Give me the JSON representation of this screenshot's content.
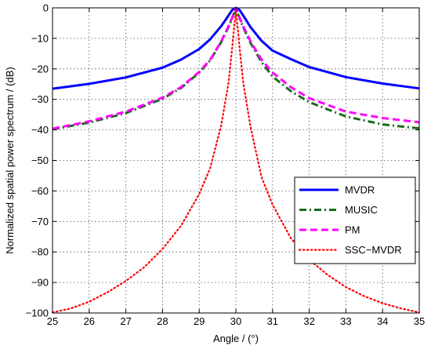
{
  "chart_data": {
    "type": "line",
    "title": "",
    "xlabel": "Angle / (°)",
    "ylabel": "Normalized spatial power spectrum / (dB)",
    "xlim": [
      25,
      35
    ],
    "ylim": [
      -100,
      0
    ],
    "xticks": [
      25,
      26,
      27,
      28,
      29,
      30,
      31,
      32,
      33,
      34,
      35
    ],
    "yticks": [
      0,
      -10,
      -20,
      -30,
      -40,
      -50,
      -60,
      -70,
      -80,
      -90,
      -100
    ],
    "grid": true,
    "legend_position": "lower-right",
    "series": [
      {
        "name": "MVDR",
        "color": "#0000ff",
        "style": "solid",
        "x": [
          25,
          26,
          27,
          28,
          28.5,
          29,
          29.3,
          29.6,
          29.8,
          29.9,
          30.0,
          30.1,
          30.2,
          30.4,
          30.7,
          31,
          31.5,
          32,
          33,
          34,
          35
        ],
        "y": [
          -26.5,
          -24.9,
          -22.8,
          -19.6,
          -17.0,
          -13.5,
          -10.3,
          -6.0,
          -2.5,
          -0.7,
          0,
          -0.7,
          -2.5,
          -6.3,
          -10.8,
          -14.0,
          -16.8,
          -19.4,
          -22.7,
          -24.8,
          -26.4
        ]
      },
      {
        "name": "MUSIC",
        "color": "#1a6b1a",
        "style": "dashdot",
        "x": [
          25,
          26,
          27,
          28,
          28.5,
          29,
          29.3,
          29.6,
          29.8,
          29.9,
          29.95,
          30.0,
          30.05,
          30.1,
          30.2,
          30.4,
          30.7,
          31,
          31.5,
          32,
          33,
          34,
          35
        ],
        "y": [
          -39.8,
          -37.6,
          -34.5,
          -29.8,
          -26.3,
          -21.2,
          -17.2,
          -11.2,
          -6.3,
          -3.4,
          -1.8,
          -0.5,
          -1.8,
          -3.4,
          -6.4,
          -11.5,
          -17.8,
          -22.5,
          -27.3,
          -30.9,
          -35.6,
          -38.2,
          -39.5
        ]
      },
      {
        "name": "PM",
        "color": "#ff00ff",
        "style": "dashed",
        "x": [
          25,
          26,
          27,
          28,
          28.5,
          29,
          29.3,
          29.6,
          29.8,
          29.9,
          29.95,
          30.0,
          30.05,
          30.1,
          30.2,
          30.4,
          30.7,
          31,
          31.5,
          32,
          33,
          34,
          35
        ],
        "y": [
          -39.6,
          -37.2,
          -34.0,
          -29.4,
          -26.0,
          -21.0,
          -17.0,
          -11.0,
          -6.0,
          -3.2,
          -1.6,
          -0.2,
          -1.6,
          -3.2,
          -6.0,
          -11.0,
          -17.0,
          -21.2,
          -26.0,
          -29.6,
          -34.0,
          -36.1,
          -37.5
        ]
      },
      {
        "name": "SSC−MVDR",
        "color": "#ff0000",
        "style": "dotted",
        "x": [
          25,
          25.5,
          26,
          26.5,
          27,
          27.5,
          28,
          28.5,
          29,
          29.3,
          29.6,
          29.8,
          29.9,
          29.95,
          30.0,
          30.05,
          30.1,
          30.2,
          30.4,
          30.7,
          31,
          31.5,
          32,
          32.5,
          33,
          33.5,
          34,
          34.5,
          35
        ],
        "y": [
          -99.8,
          -98.5,
          -96.3,
          -93.2,
          -89.5,
          -85.0,
          -79.0,
          -71.5,
          -61.0,
          -52.5,
          -38.5,
          -24.5,
          -13.0,
          -6.5,
          -1.5,
          -6.5,
          -13.0,
          -24.5,
          -39.0,
          -55.5,
          -64.5,
          -75.5,
          -82.5,
          -87.5,
          -91.5,
          -94.5,
          -96.8,
          -98.5,
          -99.8
        ]
      }
    ]
  }
}
